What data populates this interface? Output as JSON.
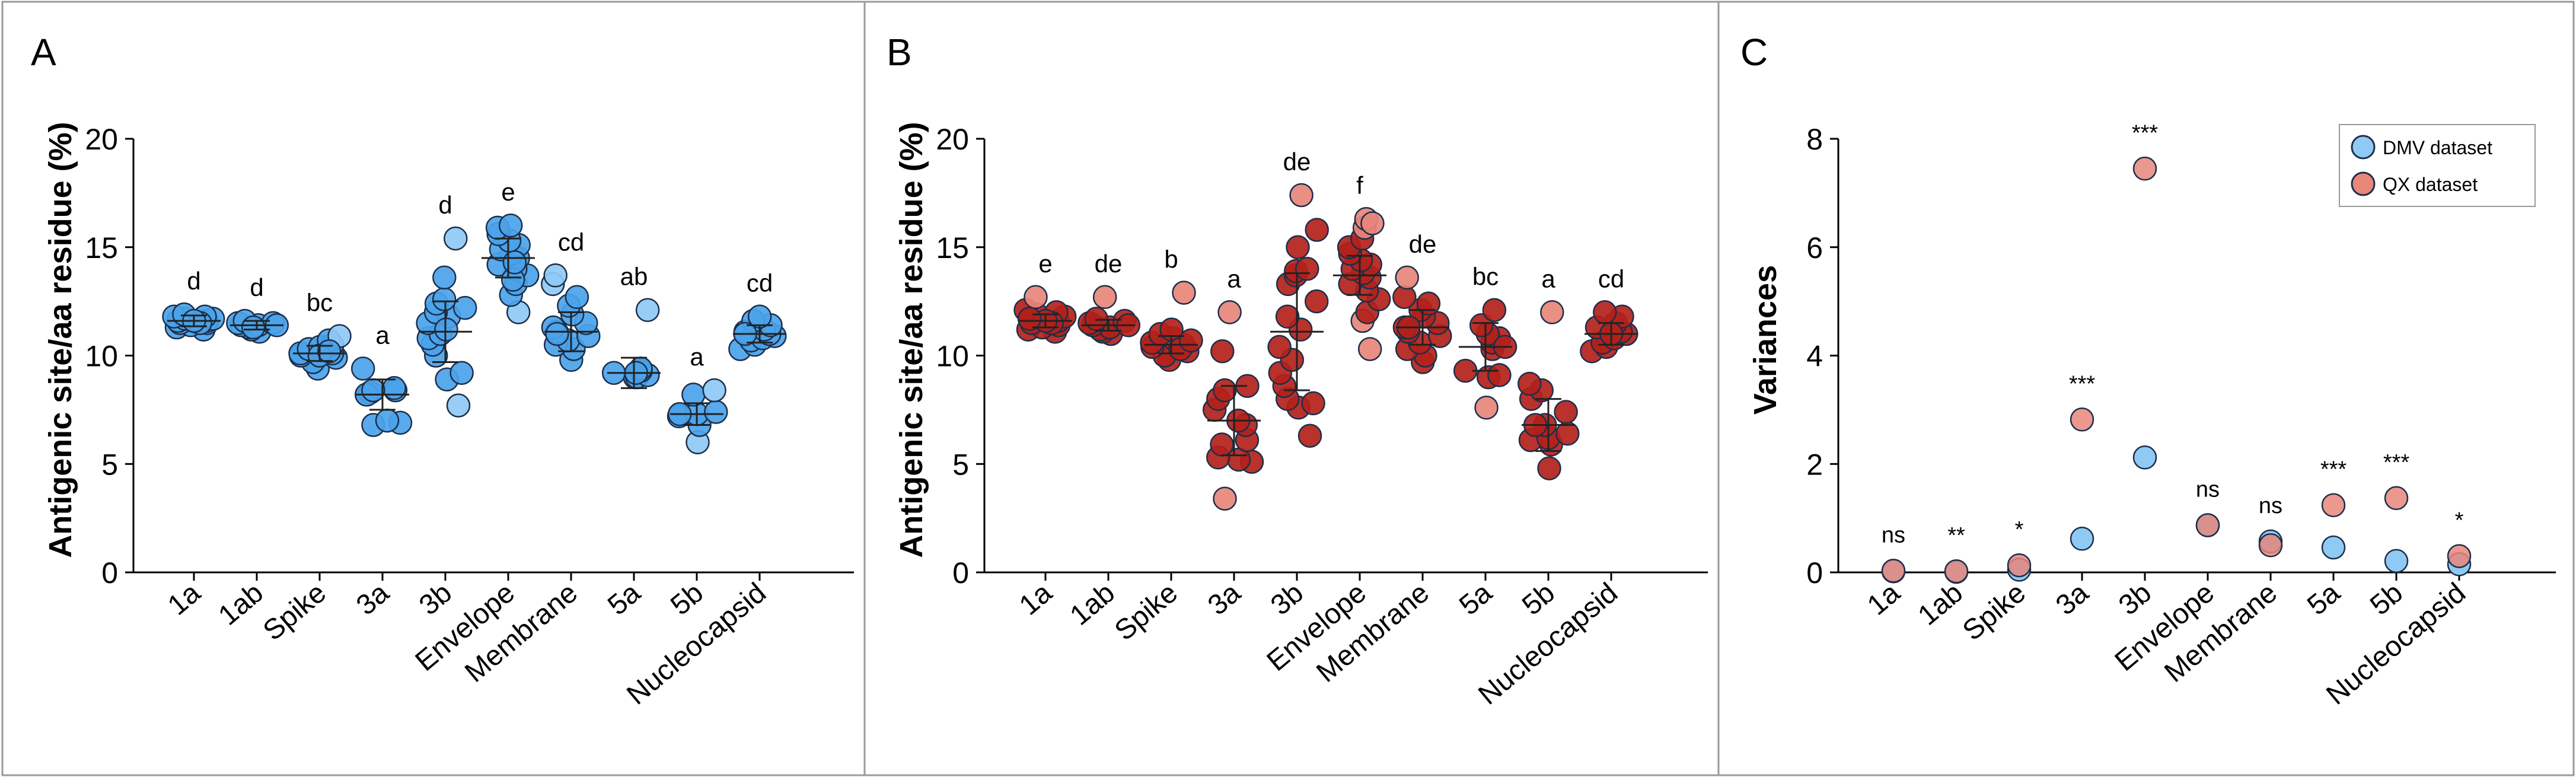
{
  "panels": [
    {
      "label": "A"
    },
    {
      "label": "B"
    },
    {
      "label": "C"
    }
  ],
  "colors": {
    "dmv_fill": "#4aa3ea",
    "dmv_light": "#8fcaf5",
    "qx_fill": "#b3211a",
    "qx_light": "#e8867a",
    "stroke_dark": "#1c2f4a",
    "axis": "#000000",
    "border": "#888888"
  },
  "chart_data": [
    {
      "panel": "A",
      "type": "scatter",
      "title": "",
      "xlabel": "",
      "ylabel": "Antigenic site/aa residue (%)",
      "ylim": [
        0,
        20
      ],
      "yticks": [
        0,
        5,
        10,
        15,
        20
      ],
      "categories": [
        "1a",
        "1ab",
        "Spike",
        "3a",
        "3b",
        "Envelope",
        "Membrane",
        "5a",
        "5b",
        "Nucleocapsid"
      ],
      "means": [
        11.6,
        11.4,
        10.1,
        8.2,
        11.1,
        14.5,
        11.1,
        9.2,
        7.3,
        11.0
      ],
      "sd": [
        0.25,
        0.2,
        0.35,
        0.7,
        1.4,
        0.9,
        0.9,
        0.7,
        0.5,
        0.4
      ],
      "significance_letters": [
        "d",
        "d",
        "bc",
        "a",
        "d",
        "e",
        "cd",
        "ab",
        "a",
        "cd"
      ],
      "points": [
        [
          11.2,
          11.3,
          11.4,
          11.5,
          11.5,
          11.6,
          11.6,
          11.7,
          11.7,
          11.8,
          11.8,
          11.9,
          11.5,
          11.6
        ],
        [
          11.1,
          11.2,
          11.3,
          11.4,
          11.4,
          11.5,
          11.5,
          11.6,
          11.3,
          11.4
        ],
        [
          9.4,
          9.7,
          9.9,
          10.0,
          10.1,
          10.1,
          10.2,
          10.3,
          10.4,
          10.5,
          10.7,
          10.9,
          10.0,
          10.2
        ],
        [
          6.8,
          6.9,
          7.0,
          8.2,
          8.3,
          8.4,
          8.5,
          9.4,
          8.2,
          8.4
        ],
        [
          7.7,
          8.9,
          9.2,
          10.0,
          10.5,
          10.8,
          11.0,
          11.5,
          11.8,
          12.0,
          12.2,
          12.4,
          12.6,
          13.6,
          15.4,
          11.2
        ],
        [
          12.0,
          12.8,
          13.3,
          13.7,
          14.0,
          14.2,
          14.5,
          14.7,
          14.9,
          15.1,
          15.3,
          15.6,
          15.9,
          16.0,
          13.5,
          14.3
        ],
        [
          9.8,
          10.3,
          10.5,
          10.7,
          10.9,
          11.1,
          11.3,
          11.5,
          11.9,
          12.3,
          12.7,
          13.3,
          13.7,
          11.0
        ],
        [
          9.0,
          9.0,
          9.1,
          9.2,
          9.3,
          9.4,
          12.1,
          9.2
        ],
        [
          6.0,
          6.8,
          7.2,
          7.3,
          7.4,
          8.2,
          8.4,
          7.3
        ],
        [
          10.3,
          10.5,
          10.7,
          10.8,
          10.9,
          11.0,
          11.1,
          11.2,
          11.4,
          11.6,
          11.8,
          11.0
        ]
      ]
    },
    {
      "panel": "B",
      "type": "scatter",
      "title": "",
      "xlabel": "",
      "ylabel": "Antigenic site/aa residue (%)",
      "ylim": [
        0,
        20
      ],
      "yticks": [
        0,
        5,
        10,
        15,
        20
      ],
      "categories": [
        "1a",
        "1ab",
        "Spike",
        "3a",
        "3b",
        "Envelope",
        "Membrane",
        "5a",
        "5b",
        "Nucleocapsid"
      ],
      "means": [
        11.6,
        11.4,
        10.5,
        7.0,
        11.1,
        13.7,
        11.3,
        10.4,
        6.8,
        11.0
      ],
      "sd": [
        0.3,
        0.25,
        0.4,
        1.6,
        2.7,
        0.9,
        0.8,
        1.1,
        1.2,
        0.5
      ],
      "significance_letters": [
        "e",
        "de",
        "b",
        "a",
        "de",
        "f",
        "de",
        "bc",
        "a",
        "cd"
      ],
      "points": [
        [
          11.1,
          11.2,
          11.3,
          11.4,
          11.5,
          11.6,
          11.7,
          11.8,
          11.9,
          12.0,
          12.1,
          12.7,
          11.5,
          11.6,
          11.7
        ],
        [
          11.0,
          11.1,
          11.2,
          11.3,
          11.4,
          11.5,
          11.6,
          11.7,
          12.7,
          11.4
        ],
        [
          9.8,
          10.0,
          10.2,
          10.4,
          10.5,
          10.6,
          10.8,
          11.0,
          11.2,
          12.9,
          10.3,
          10.7
        ],
        [
          3.4,
          5.1,
          5.2,
          5.3,
          5.9,
          6.1,
          6.8,
          7.5,
          8.0,
          8.4,
          8.6,
          10.2,
          12.0,
          7.0
        ],
        [
          6.3,
          7.6,
          7.8,
          8.0,
          8.6,
          9.2,
          9.8,
          10.4,
          11.2,
          11.8,
          12.5,
          13.3,
          13.7,
          13.9,
          14.0,
          15.0,
          15.8,
          17.4
        ],
        [
          10.3,
          11.6,
          12.0,
          12.6,
          13.0,
          13.3,
          13.6,
          13.8,
          14.0,
          14.2,
          14.4,
          14.7,
          15.0,
          15.4,
          15.9,
          16.3,
          16.1
        ],
        [
          9.7,
          10.0,
          10.3,
          10.6,
          10.9,
          11.1,
          11.3,
          11.5,
          11.8,
          12.1,
          12.4,
          12.7,
          13.6,
          11.3
        ],
        [
          7.6,
          9.0,
          9.1,
          9.3,
          10.3,
          10.6,
          10.8,
          11.0,
          11.4,
          12.1,
          10.4
        ],
        [
          4.8,
          5.9,
          6.1,
          6.2,
          6.4,
          6.8,
          7.4,
          8.0,
          8.4,
          8.7,
          12.0,
          6.8
        ],
        [
          10.2,
          10.4,
          10.6,
          10.8,
          11.0,
          11.1,
          11.3,
          11.5,
          11.8,
          12.0,
          11.0
        ]
      ]
    },
    {
      "panel": "C",
      "type": "scatter",
      "title": "",
      "xlabel": "",
      "ylabel": "Variances",
      "ylim": [
        0,
        8
      ],
      "yticks": [
        0,
        2,
        4,
        6,
        8
      ],
      "categories": [
        "1a",
        "1ab",
        "Spike",
        "3a",
        "3b",
        "Envelope",
        "Membrane",
        "5a",
        "5b",
        "Nucleocapsid"
      ],
      "legend": {
        "position": "top-right",
        "entries": [
          "DMV dataset",
          "QX dataset"
        ]
      },
      "series": [
        {
          "name": "DMV dataset",
          "values": [
            0.02,
            0.01,
            0.05,
            0.62,
            2.12,
            0.87,
            0.57,
            0.46,
            0.21,
            0.15
          ]
        },
        {
          "name": "QX dataset",
          "values": [
            0.03,
            0.02,
            0.13,
            2.82,
            7.45,
            0.87,
            0.5,
            1.24,
            1.37,
            0.3
          ]
        }
      ],
      "significance": [
        "ns",
        "**",
        "*",
        "***",
        "***",
        "ns",
        "ns",
        "***",
        "***",
        "*"
      ]
    }
  ]
}
